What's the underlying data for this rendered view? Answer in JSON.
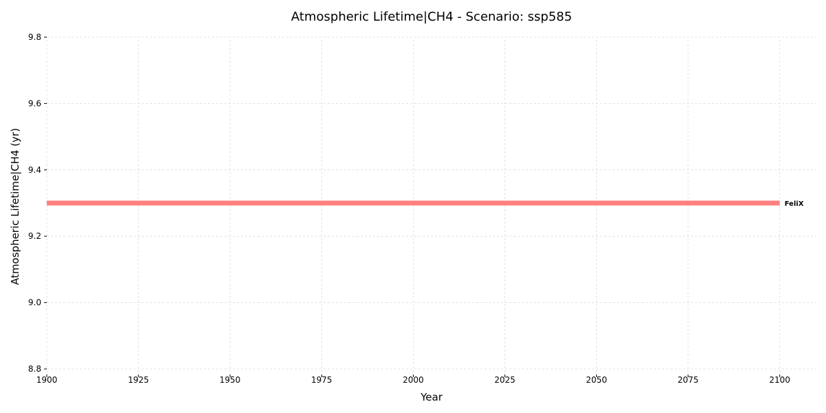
{
  "chart_data": {
    "type": "line",
    "title": "Atmospheric Lifetime|CH4 - Scenario: ssp585",
    "xlabel": "Year",
    "ylabel": "Atmospheric Lifetime|CH4 (yr)",
    "xlim": [
      1900,
      2110
    ],
    "ylim": [
      8.8,
      9.8
    ],
    "xticks": [
      1900,
      1925,
      1950,
      1975,
      2000,
      2025,
      2050,
      2075,
      2100
    ],
    "xtick_labels": [
      "1900",
      "1925",
      "1950",
      "1975",
      "2000",
      "2025",
      "2050",
      "2075",
      "2100"
    ],
    "yticks": [
      8.8,
      9.0,
      9.2,
      9.4,
      9.6,
      9.8
    ],
    "ytick_labels": [
      "8.8",
      "9.0",
      "9.2",
      "9.4",
      "9.6",
      "9.8"
    ],
    "grid": true,
    "legend": "none",
    "series": [
      {
        "name": "FeliX",
        "color": "#ff7f7f",
        "x": [
          1900,
          2100
        ],
        "y": [
          9.3,
          9.3
        ]
      }
    ]
  }
}
